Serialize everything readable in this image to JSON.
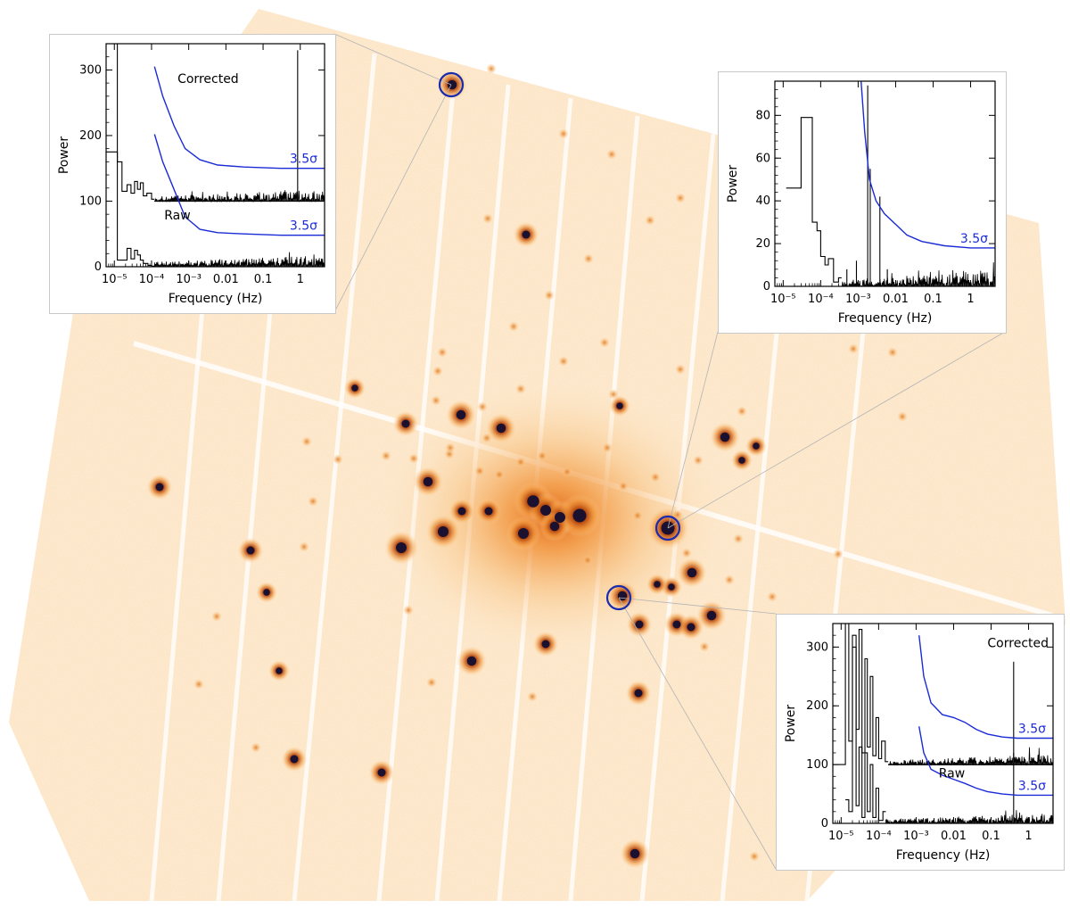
{
  "figure": {
    "description_free": true,
    "colors": {
      "background": "#ffffff",
      "glow": "#f3a84a",
      "source": "#1a1030",
      "marker": "#1a2bb0",
      "noise": "#000000",
      "threshold": "#1a2bd6",
      "leader": "#b4b4b4"
    }
  },
  "chart_data": [
    {
      "type": "line",
      "id": "top-left",
      "title": "",
      "xlabel": "Frequency (Hz)",
      "ylabel": "Power",
      "xscale": "log",
      "xlim": [
        6e-06,
        4.5
      ],
      "ylim": [
        0,
        340
      ],
      "xticks": [
        {
          "value": 1e-05,
          "label": "10⁻⁵"
        },
        {
          "value": 0.0001,
          "label": "10⁻⁴"
        },
        {
          "value": 0.001,
          "label": "10⁻³"
        },
        {
          "value": 0.01,
          "label": "0.01"
        },
        {
          "value": 0.1,
          "label": "0.1"
        },
        {
          "value": 1,
          "label": "1"
        }
      ],
      "yticks": [
        0,
        100,
        200,
        300
      ],
      "annotations": [
        {
          "text": "Corrected",
          "x": 0.0005,
          "y": 280
        },
        {
          "text": "Raw",
          "x": 0.00022,
          "y": 72
        }
      ],
      "series": [
        {
          "name": "Corrected",
          "offset": 100,
          "low_freq_steps": [
            [
              6e-06,
              280
            ],
            [
              8.5e-06,
              280
            ],
            [
              1.2e-05,
              60
            ],
            [
              1.6e-05,
              15
            ],
            [
              2.2e-05,
              25
            ],
            [
              2.8e-05,
              12
            ],
            [
              3.5e-05,
              30
            ],
            [
              4.2e-05,
              18
            ],
            [
              5e-05,
              28
            ],
            [
              6e-05,
              8
            ],
            [
              7.5e-05,
              12
            ],
            [
              0.0001,
              3
            ]
          ],
          "noise_level": 12,
          "peaks": [
            {
              "x": 0.85,
              "y": 330
            }
          ]
        },
        {
          "name": "Raw",
          "offset": 0,
          "low_freq_steps": [
            [
              6e-06,
              175
            ],
            [
              8.5e-06,
              175
            ],
            [
              1.2e-05,
              10
            ],
            [
              1.6e-05,
              10
            ],
            [
              2.2e-05,
              28
            ],
            [
              2.8e-05,
              12
            ],
            [
              3.5e-05,
              25
            ],
            [
              4.2e-05,
              18
            ],
            [
              5e-05,
              10
            ],
            [
              6e-05,
              5
            ],
            [
              8e-05,
              2
            ],
            [
              0.0001,
              1
            ]
          ],
          "noise_level": 12,
          "peaks": []
        }
      ],
      "thresholds": [
        {
          "label": "3.5σ",
          "x": [
            0.00012,
            0.0002,
            0.0004,
            0.0008,
            0.002,
            0.006,
            0.03,
            0.3,
            4.5
          ],
          "y": [
            305,
            260,
            215,
            180,
            163,
            155,
            152,
            150,
            150
          ]
        },
        {
          "label": "3.5σ",
          "x": [
            0.00012,
            0.0002,
            0.0004,
            0.0008,
            0.002,
            0.006,
            0.03,
            0.3,
            4.5
          ],
          "y": [
            202,
            160,
            118,
            76,
            57,
            52,
            50,
            48,
            48
          ]
        }
      ]
    },
    {
      "type": "line",
      "id": "top-right",
      "title": "",
      "xlabel": "Frequency (Hz)",
      "ylabel": "Power",
      "xscale": "log",
      "xlim": [
        6e-06,
        4.5
      ],
      "ylim": [
        0,
        96
      ],
      "xticks": [
        {
          "value": 1e-05,
          "label": "10⁻⁵"
        },
        {
          "value": 0.0001,
          "label": "10⁻⁴"
        },
        {
          "value": 0.001,
          "label": "10⁻³"
        },
        {
          "value": 0.01,
          "label": "0.01"
        },
        {
          "value": 0.1,
          "label": "0.1"
        },
        {
          "value": 1,
          "label": "1"
        }
      ],
      "yticks": [
        0,
        20,
        40,
        60,
        80
      ],
      "annotations": [],
      "series": [
        {
          "name": "Power",
          "offset": 0,
          "low_freq_steps": [
            [
              1.2e-05,
              46
            ],
            [
              3e-05,
              46
            ],
            [
              3e-05,
              79
            ],
            [
              6e-05,
              30
            ],
            [
              8e-05,
              26
            ],
            [
              0.0001,
              14
            ],
            [
              0.00013,
              10
            ],
            [
              0.00016,
              13
            ],
            [
              0.00022,
              2
            ],
            [
              0.0003,
              4
            ]
          ],
          "noise_level": 5,
          "peaks": [
            {
              "x": 0.0018,
              "y": 94
            },
            {
              "x": 0.0021,
              "y": 55
            },
            {
              "x": 0.0038,
              "y": 42
            },
            {
              "x": 0.006,
              "y": 8
            },
            {
              "x": 0.0009,
              "y": 12
            },
            {
              "x": 0.0005,
              "y": 8
            }
          ]
        }
      ],
      "thresholds": [
        {
          "label": "3.5σ",
          "x": [
            0.0012,
            0.0015,
            0.002,
            0.003,
            0.005,
            0.01,
            0.02,
            0.05,
            0.2,
            1,
            4.5
          ],
          "y": [
            96,
            72,
            50,
            40,
            34,
            29,
            24,
            21,
            19,
            18,
            18
          ]
        }
      ]
    },
    {
      "type": "line",
      "id": "bottom-right",
      "title": "",
      "xlabel": "Frequency (Hz)",
      "ylabel": "Power",
      "xscale": "log",
      "xlim": [
        6e-06,
        4.5
      ],
      "ylim": [
        0,
        340
      ],
      "xticks": [
        {
          "value": 1e-05,
          "label": "10⁻⁵"
        },
        {
          "value": 0.0001,
          "label": "10⁻⁴"
        },
        {
          "value": 0.001,
          "label": "10⁻³"
        },
        {
          "value": 0.01,
          "label": "0.01"
        },
        {
          "value": 0.1,
          "label": "0.1"
        },
        {
          "value": 1,
          "label": "1"
        }
      ],
      "yticks": [
        0,
        100,
        200,
        300
      ],
      "annotations": [
        {
          "text": "Corrected",
          "x": 0.08,
          "y": 300
        },
        {
          "text": "Raw",
          "x": 0.004,
          "y": 78
        }
      ],
      "series": [
        {
          "name": "Corrected",
          "offset": 100,
          "low_freq_steps": [
            [
              6e-06,
              0
            ],
            [
              1e-05,
              0
            ],
            [
              1.3e-05,
              240
            ],
            [
              1.6e-05,
              40
            ],
            [
              2e-05,
              200
            ],
            [
              2.5e-05,
              60
            ],
            [
              3e-05,
              230
            ],
            [
              3.6e-05,
              20
            ],
            [
              4.3e-05,
              180
            ],
            [
              5e-05,
              30
            ],
            [
              6e-05,
              150
            ],
            [
              7e-05,
              15
            ],
            [
              8.5e-05,
              80
            ],
            [
              0.0001,
              10
            ],
            [
              0.00012,
              40
            ],
            [
              0.00015,
              5
            ]
          ],
          "noise_level": 12,
          "peaks": [
            {
              "x": 0.4,
              "y": 275
            }
          ]
        },
        {
          "name": "Raw",
          "offset": 0,
          "low_freq_steps": [
            [
              1.3e-05,
              40
            ],
            [
              1.6e-05,
              20
            ],
            [
              2e-05,
              320
            ],
            [
              2.5e-05,
              30
            ],
            [
              3e-05,
              130
            ],
            [
              3.6e-05,
              10
            ],
            [
              4.3e-05,
              120
            ],
            [
              5e-05,
              20
            ],
            [
              6e-05,
              100
            ],
            [
              7e-05,
              10
            ],
            [
              8.5e-05,
              60
            ],
            [
              0.0001,
              5
            ],
            [
              0.00013,
              20
            ]
          ],
          "noise_level": 12,
          "peaks": [
            {
              "x": 0.4,
              "y": 120
            }
          ]
        }
      ],
      "thresholds": [
        {
          "label": "3.5σ",
          "x": [
            0.0012,
            0.0016,
            0.0025,
            0.005,
            0.01,
            0.02,
            0.04,
            0.08,
            0.2,
            0.5,
            4.5
          ],
          "y": [
            320,
            250,
            205,
            185,
            180,
            172,
            160,
            152,
            147,
            145,
            145
          ]
        },
        {
          "label": "3.5σ",
          "x": [
            0.0012,
            0.0016,
            0.0025,
            0.005,
            0.01,
            0.02,
            0.04,
            0.08,
            0.2,
            0.5,
            4.5
          ],
          "y": [
            165,
            120,
            92,
            82,
            75,
            68,
            60,
            54,
            50,
            48,
            48
          ]
        }
      ]
    }
  ]
}
